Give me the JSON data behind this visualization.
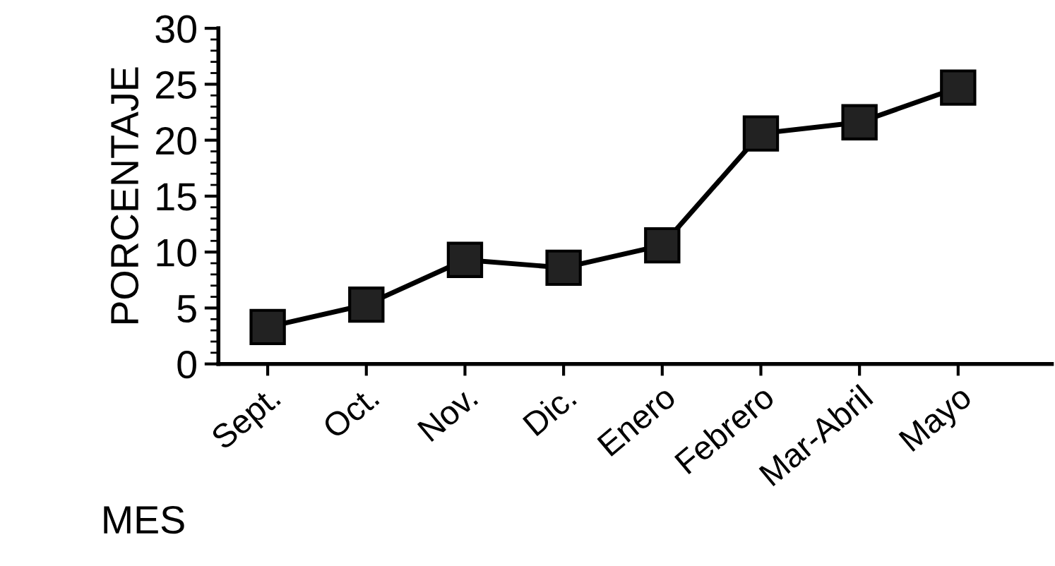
{
  "chart_data": {
    "type": "line",
    "xlabel": "MES",
    "ylabel": "PORCENTAJE",
    "categories": [
      "Sept.",
      "Oct.",
      "Nov.",
      "Dic.",
      "Enero",
      "Febrero",
      "Mar-Abril",
      "Mayo"
    ],
    "series": [
      {
        "color": "#222222",
        "values": [
          3.3,
          5.3,
          9.3,
          8.6,
          10.6,
          20.6,
          21.6,
          24.7
        ]
      }
    ],
    "ylim": [
      0,
      30
    ],
    "yticks": [
      0,
      5,
      10,
      15,
      20,
      25,
      30
    ],
    "marker": "square",
    "line_style": "solid"
  }
}
